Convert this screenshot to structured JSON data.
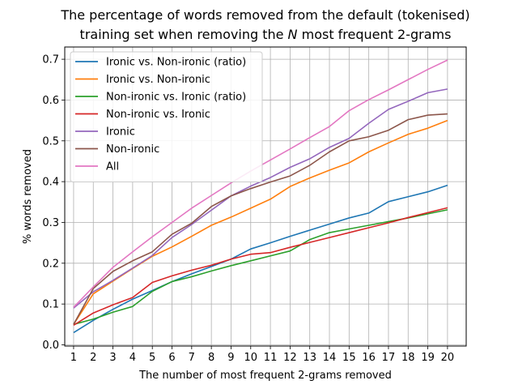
{
  "chart_data": {
    "type": "line",
    "title_line1": "The percentage of words removed from the default (tokenised)",
    "title_line2": "training set when removing the N most frequent 2-grams",
    "xlabel": "The number of most frequent 2-grams removed",
    "ylabel": "% words removed",
    "x": [
      1,
      2,
      3,
      4,
      5,
      6,
      7,
      8,
      9,
      10,
      11,
      12,
      13,
      14,
      15,
      16,
      17,
      18,
      19,
      20
    ],
    "xlim": [
      0.55,
      20.95
    ],
    "ylim": [
      -0.003,
      0.73
    ],
    "yticks": [
      0.0,
      0.1,
      0.2,
      0.3,
      0.4,
      0.5,
      0.6,
      0.7
    ],
    "grid": true,
    "legend_position": "upper left",
    "series": [
      {
        "name": "Ironic vs. Non-ironic (ratio)",
        "color": "#1f77b4",
        "values": [
          0.03,
          0.06,
          0.087,
          0.112,
          0.133,
          0.155,
          0.174,
          0.192,
          0.21,
          0.235,
          0.25,
          0.266,
          0.281,
          0.296,
          0.311,
          0.323,
          0.351,
          0.363,
          0.375,
          0.391
        ]
      },
      {
        "name": "Ironic vs. Non-ironic",
        "color": "#ff7f0e",
        "values": [
          0.05,
          0.125,
          0.156,
          0.187,
          0.217,
          0.24,
          0.266,
          0.293,
          0.313,
          0.335,
          0.357,
          0.388,
          0.409,
          0.428,
          0.446,
          0.473,
          0.495,
          0.516,
          0.531,
          0.55
        ]
      },
      {
        "name": "Non-ironic vs. Ironic (ratio)",
        "color": "#2ca02c",
        "values": [
          0.05,
          0.063,
          0.08,
          0.094,
          0.131,
          0.155,
          0.167,
          0.181,
          0.194,
          0.206,
          0.218,
          0.23,
          0.258,
          0.275,
          0.284,
          0.293,
          0.302,
          0.311,
          0.321,
          0.331
        ]
      },
      {
        "name": "Non-ironic vs. Ironic",
        "color": "#d62728",
        "values": [
          0.048,
          0.078,
          0.098,
          0.116,
          0.153,
          0.169,
          0.183,
          0.195,
          0.21,
          0.222,
          0.226,
          0.239,
          0.251,
          0.263,
          0.275,
          0.287,
          0.299,
          0.312,
          0.324,
          0.336
        ]
      },
      {
        "name": "Ironic",
        "color": "#9467bd",
        "values": [
          0.09,
          0.13,
          0.158,
          0.188,
          0.219,
          0.263,
          0.295,
          0.33,
          0.365,
          0.389,
          0.41,
          0.435,
          0.456,
          0.484,
          0.506,
          0.543,
          0.577,
          0.597,
          0.618,
          0.627
        ]
      },
      {
        "name": "Non-ironic",
        "color": "#8c564b",
        "values": [
          0.05,
          0.138,
          0.18,
          0.206,
          0.228,
          0.271,
          0.298,
          0.339,
          0.365,
          0.383,
          0.399,
          0.414,
          0.44,
          0.473,
          0.5,
          0.51,
          0.526,
          0.552,
          0.563,
          0.566
        ]
      },
      {
        "name": "All",
        "color": "#e377c2",
        "values": [
          0.092,
          0.142,
          0.19,
          0.228,
          0.265,
          0.3,
          0.335,
          0.366,
          0.397,
          0.426,
          0.453,
          0.48,
          0.508,
          0.535,
          0.574,
          0.601,
          0.625,
          0.65,
          0.675,
          0.698
        ]
      }
    ]
  }
}
